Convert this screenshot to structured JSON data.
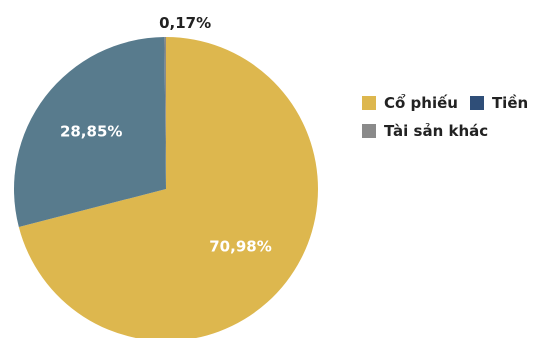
{
  "chart_data": {
    "type": "pie",
    "slices": [
      {
        "label": "Cổ phiếu",
        "value": 70.98,
        "value_label": "70,98%",
        "color": "#DDB74E"
      },
      {
        "label": "Tiền",
        "value": 28.85,
        "value_label": "28,85%",
        "color": "#587B8D"
      },
      {
        "label": "Tài sản khác",
        "value": 0.17,
        "value_label": "0,17%",
        "color": "#8A8A8A"
      }
    ],
    "legend": {
      "placement": "right",
      "rows": [
        [
          {
            "label": "Cổ phiếu",
            "color": "#DDB74E"
          },
          {
            "label": "Tiền",
            "color": "#2F4E78"
          }
        ],
        [
          {
            "label": "Tài sản khác",
            "color": "#8A8A8A"
          }
        ]
      ]
    },
    "label_colors": {
      "inside": "#FFFFFF",
      "outside": "#222222"
    }
  }
}
